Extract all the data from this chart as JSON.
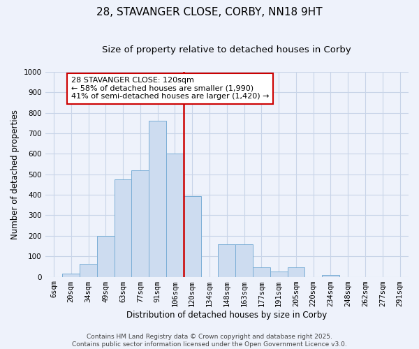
{
  "title": "28, STAVANGER CLOSE, CORBY, NN18 9HT",
  "subtitle": "Size of property relative to detached houses in Corby",
  "xlabel": "Distribution of detached houses by size in Corby",
  "ylabel": "Number of detached properties",
  "bar_labels": [
    "6sqm",
    "20sqm",
    "34sqm",
    "49sqm",
    "63sqm",
    "77sqm",
    "91sqm",
    "106sqm",
    "120sqm",
    "134sqm",
    "148sqm",
    "163sqm",
    "177sqm",
    "191sqm",
    "205sqm",
    "220sqm",
    "234sqm",
    "248sqm",
    "262sqm",
    "277sqm",
    "291sqm"
  ],
  "bar_values": [
    0,
    15,
    62,
    200,
    475,
    520,
    760,
    600,
    395,
    0,
    160,
    160,
    45,
    25,
    45,
    0,
    8,
    0,
    0,
    0,
    0
  ],
  "bar_color": "#cddcf0",
  "bar_edge_color": "#7aaed6",
  "vline_color": "#cc0000",
  "annotation_text": "28 STAVANGER CLOSE: 120sqm\n← 58% of detached houses are smaller (1,990)\n41% of semi-detached houses are larger (1,420) →",
  "annotation_box_color": "#ffffff",
  "annotation_box_edge": "#cc0000",
  "ylim": [
    0,
    1000
  ],
  "yticks": [
    0,
    100,
    200,
    300,
    400,
    500,
    600,
    700,
    800,
    900,
    1000
  ],
  "bg_color": "#eef2fb",
  "grid_color": "#c8d4e8",
  "footer_line1": "Contains HM Land Registry data © Crown copyright and database right 2025.",
  "footer_line2": "Contains public sector information licensed under the Open Government Licence v3.0.",
  "title_fontsize": 11,
  "subtitle_fontsize": 9.5,
  "axis_label_fontsize": 8.5,
  "tick_fontsize": 7.5,
  "annotation_fontsize": 8,
  "footer_fontsize": 6.5
}
